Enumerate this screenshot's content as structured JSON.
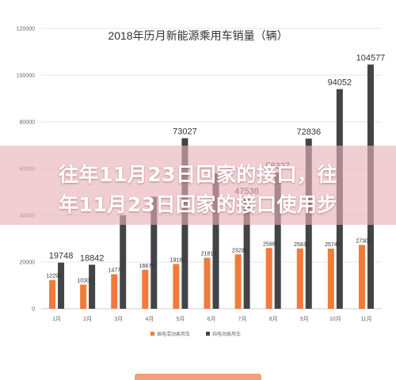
{
  "chart_data": {
    "type": "bar",
    "title": "2018年历月新能源乘用车销量（辆）",
    "categories": [
      "1月",
      "2月",
      "3月",
      "4月",
      "5月",
      "6月",
      "7月",
      "8月",
      "9月",
      "10月",
      "11月"
    ],
    "ylim": [
      0,
      120000
    ],
    "yticks": [
      "0",
      "20000",
      "40000",
      "60000",
      "80000",
      "100000",
      "120000"
    ],
    "grid": true,
    "legend_position": "bottom",
    "series": [
      {
        "name": "插电混动乘用车",
        "color": "#f27a3a",
        "values": [
          12298,
          10307,
          14771,
          16679,
          19165,
          21813,
          23295,
          25989,
          25839,
          25749,
          27308
        ],
        "labels": [
          "12298",
          "10307",
          "14771",
          "16679",
          "19165",
          "21813",
          "23295",
          "25989",
          "25839",
          "25749",
          "27308"
        ]
      },
      {
        "name": "纯电动乘用车",
        "color": "#434447",
        "values": [
          19748,
          18842,
          40000,
          48000,
          73027,
          58000,
          47538,
          58327,
          72836,
          94052,
          104577
        ],
        "labels": [
          "19748",
          "18842",
          "",
          "",
          "73027",
          "",
          "47538",
          "58327",
          "72836",
          "94052",
          "104577"
        ]
      }
    ]
  },
  "overlay": {
    "line1": "往年11月23日回家的接口，往",
    "line2": "年11月23日回家的接口使用步"
  }
}
